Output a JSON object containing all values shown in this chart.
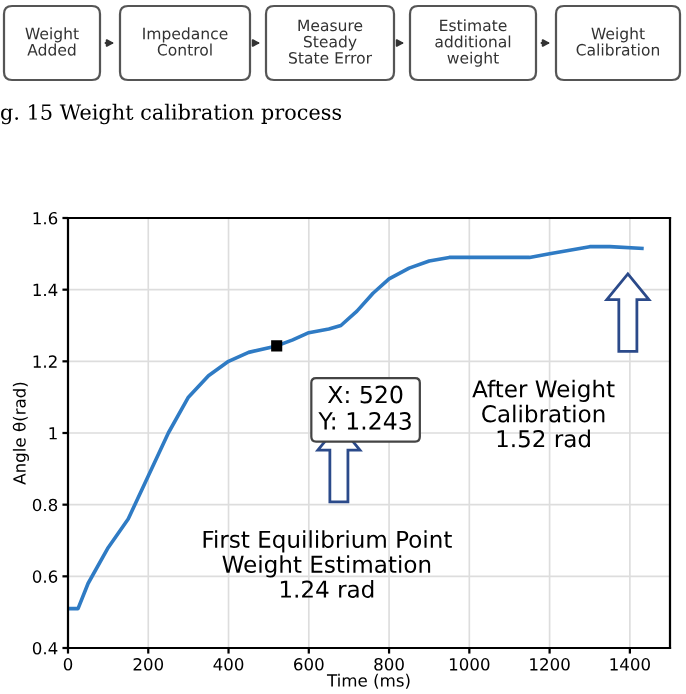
{
  "chart_data": [
    {
      "type": "other",
      "annotations": [
        "Weight\nAdded",
        "Impedance\nControl",
        "Measure\nSteady\nState Error",
        "Estimate\nadditional\nweight",
        "Weight\nCalibration",
        "g. 15 Weight calibration process"
      ]
    },
    {
      "type": "line",
      "xlabel": "Time (ms)",
      "ylabel": "Angle θ(rad)",
      "x": [
        0,
        25,
        50,
        100,
        150,
        200,
        250,
        300,
        350,
        400,
        450,
        520,
        560,
        600,
        650,
        680,
        720,
        760,
        800,
        850,
        900,
        950,
        1000,
        1100,
        1150,
        1200,
        1250,
        1300,
        1350,
        1430
      ],
      "series": [
        {
          "color": "#2f7bc4",
          "values": [
            0.51,
            0.51,
            0.58,
            0.68,
            0.76,
            0.88,
            1.0,
            1.1,
            1.16,
            1.2,
            1.225,
            1.243,
            1.26,
            1.28,
            1.29,
            1.3,
            1.34,
            1.39,
            1.43,
            1.46,
            1.48,
            1.49,
            1.49,
            1.49,
            1.49,
            1.5,
            1.51,
            1.52,
            1.52,
            1.515
          ]
        }
      ],
      "xlim": [
        0,
        1500
      ],
      "xticks": [
        0,
        200,
        400,
        600,
        800,
        1000,
        1200,
        1400
      ],
      "ylim": [
        0.4,
        1.6
      ],
      "yticks": [
        0.4,
        0.6,
        0.8,
        1,
        1.2,
        1.4,
        1.6
      ],
      "grid": true,
      "marker": "none",
      "line_style": "solid",
      "annotations": [
        {
          "text": "X: 520\nY: 1.243",
          "x": 520,
          "y": 1.243
        },
        "After Weight\nCalibration\n1.52 rad",
        "First Equilibrium Point\nWeight Estimation\n1.24 rad"
      ]
    }
  ]
}
